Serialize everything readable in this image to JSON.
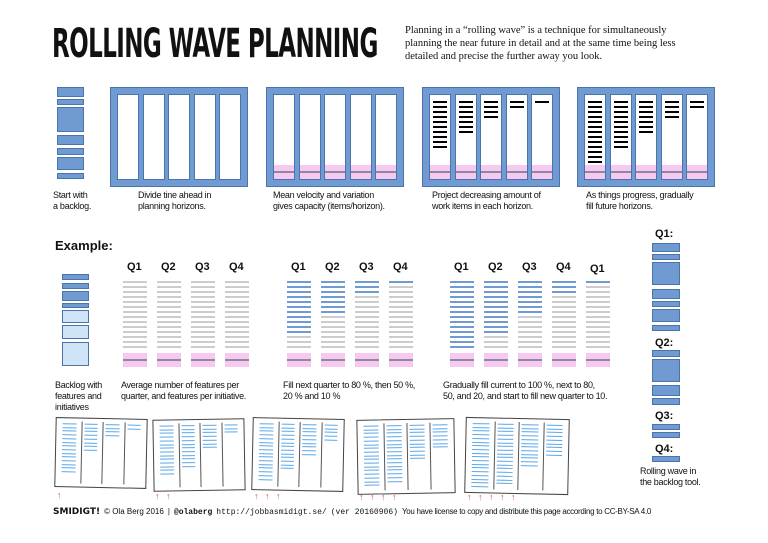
{
  "title": "ROLLING WAVE PLANNING",
  "intro": "Planning in a “rolling wave” is a technique for simultaneously planning the near future in detail and at the same time being less detailed and precise the further away you look.",
  "steps": [
    {
      "caption": "Start with\na backlog."
    },
    {
      "caption": "Divide tine ahead in\nplanning horizons.",
      "bars": [
        0,
        0,
        0,
        0,
        0
      ],
      "pink": false
    },
    {
      "caption": "Mean velocity and variation\ngives capacity (items/horizon).",
      "bars": [
        0,
        0,
        0,
        0,
        0
      ],
      "pink": true
    },
    {
      "caption": "Project decreasing amount of\nwork items in each horizon.",
      "bars": [
        10,
        7,
        4,
        2,
        1
      ],
      "pink": true
    },
    {
      "caption": "As things progress, gradually\nfill future horizons.",
      "bars": [
        13,
        10,
        7,
        4,
        2
      ],
      "pink": true
    }
  ],
  "example": {
    "heading": "Example:",
    "backlog_caption": "Backlog with\nfeatures and\ninitiatives",
    "groups": [
      {
        "labels": [
          "Q1",
          "Q2",
          "Q3",
          "Q4"
        ],
        "fill_percent": [
          0,
          0,
          0,
          0
        ],
        "caption": "Average number of features per\nquarter, and features per initiative."
      },
      {
        "labels": [
          "Q1",
          "Q2",
          "Q3",
          "Q4"
        ],
        "fill_percent": [
          80,
          50,
          20,
          10
        ],
        "caption": "Fill next quarter to 80 %, then 50 %,\n20 % and 10 %"
      },
      {
        "labels": [
          "Q1",
          "Q2",
          "Q3",
          "Q4",
          "Q1"
        ],
        "fill_percent": [
          100,
          80,
          50,
          20,
          10
        ],
        "caption": "Gradually fill current to 100 %, next to  80,\n50, and 20, and start to fill new quarter to 10."
      }
    ],
    "backlog_tool": {
      "labels": [
        "Q1:",
        "Q2:",
        "Q3:",
        "Q4:"
      ],
      "caption": "Rolling wave in\nthe backlog tool."
    }
  },
  "sketches": {
    "count": 5,
    "arrows": [
      1,
      2,
      3,
      4,
      5
    ]
  },
  "footer": {
    "logo": "SMIDIGT!",
    "copyright": "© Ola Berg 2016",
    "sep": "|",
    "handle": "@olaberg",
    "url": "http://jobbasmidigt.se/",
    "version": "(ver 20160906)",
    "license": "You have license to copy and distribute this page according to CC-BY-SA 4.0"
  },
  "colors": {
    "blue": "#6f9bd2",
    "light_blue": "#cfe4f6",
    "pink": "#f7c8f2",
    "gray_line": "#cccccc",
    "sketch_line": "#5aa7e8",
    "arrow": "#e04848"
  }
}
